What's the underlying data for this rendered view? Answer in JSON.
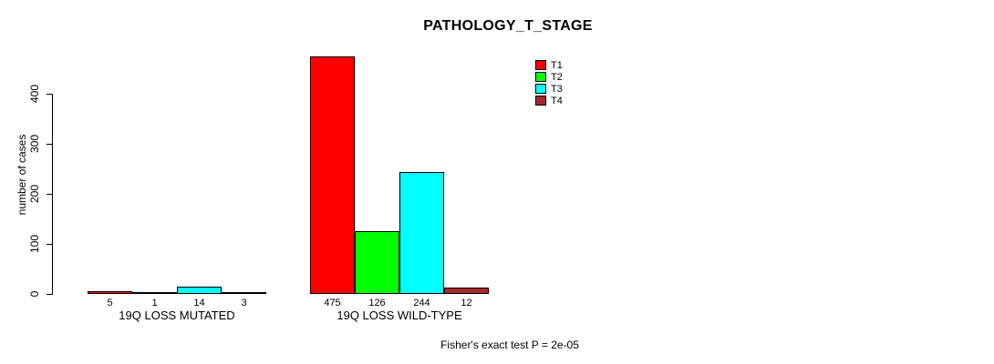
{
  "chart_data": {
    "type": "bar",
    "title": "PATHOLOGY_T_STAGE",
    "ylabel": "number of cases",
    "xlabel": "",
    "ylim": [
      0,
      400
    ],
    "yticks": [
      0,
      100,
      200,
      300,
      400
    ],
    "grid": false,
    "legend_position": "top-right",
    "series": [
      {
        "name": "T1",
        "color": "#ff0000"
      },
      {
        "name": "T2",
        "color": "#00ff00"
      },
      {
        "name": "T3",
        "color": "#00ffff"
      },
      {
        "name": "T4",
        "color": "#a52a2a"
      }
    ],
    "groups": [
      {
        "label": "19Q LOSS MUTATED",
        "values": [
          5,
          1,
          14,
          3
        ]
      },
      {
        "label": "19Q LOSS WILD-TYPE",
        "values": [
          475,
          126,
          244,
          12
        ]
      }
    ],
    "bar_value_labels": [
      [
        "5",
        "1",
        "14",
        "3"
      ],
      [
        "475",
        "126",
        "244",
        "12"
      ]
    ],
    "annotation": "Fisher's exact test P = 2e-05",
    "axis_color": "#000000",
    "background_color": "#ffffff"
  }
}
